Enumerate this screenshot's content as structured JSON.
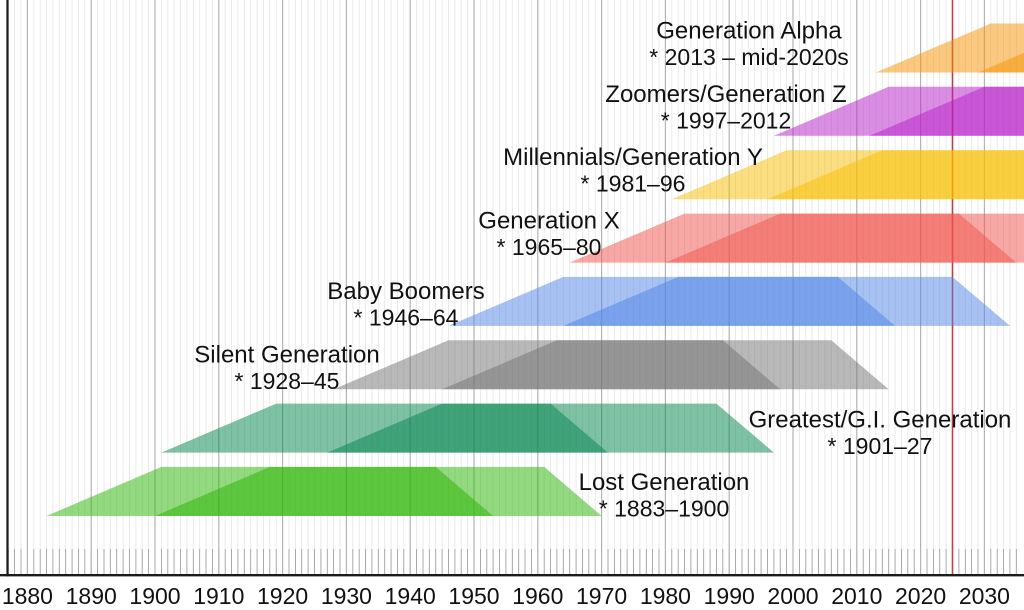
{
  "chart_data": {
    "type": "area",
    "subtype": "generational-timeline-trapezoids",
    "title": "",
    "background": "#FFFFFF",
    "x_axis": {
      "tick_years": [
        1880,
        1890,
        1900,
        1910,
        1920,
        1930,
        1940,
        1950,
        1960,
        1970,
        1980,
        1990,
        2000,
        2010,
        2020,
        2030
      ],
      "minor_gridline_every_years": 1,
      "minor_year_start": 1877,
      "minor_year_end": 2035,
      "visible_year_range": [
        1876,
        2036
      ]
    },
    "current_year_marker": {
      "year": 2025,
      "color": "#CC3B3B"
    },
    "band_shape_years": {
      "rise": 18,
      "plateau_end": 61,
      "total": 70
    },
    "fill_opacity": 0.5,
    "generations": [
      {
        "name": "Generation Alpha",
        "years_label": "* 2013 – mid-2020s",
        "start_year": 2013,
        "end_year": 2029,
        "color": "#F59100",
        "label_center_x": 749,
        "label_dy": -7
      },
      {
        "name": "Zoomers/Generation Z",
        "years_label": "* 1997–2012",
        "start_year": 1997,
        "end_year": 2012,
        "color": "#B51DC8",
        "label_center_x": 726,
        "label_dy": -7
      },
      {
        "name": "Millennials/Generation Y",
        "years_label": "* 1981–96",
        "start_year": 1981,
        "end_year": 1996,
        "color": "#F7BD00",
        "label_center_x": 633,
        "label_dy": -7
      },
      {
        "name": "Generation X",
        "years_label": "* 1965–80",
        "start_year": 1965,
        "end_year": 1980,
        "color": "#EF5149",
        "label_center_x": 549,
        "label_dy": -7
      },
      {
        "name": "Baby Boomers",
        "years_label": "* 1946–64",
        "start_year": 1946,
        "end_year": 1964,
        "color": "#4D83E5",
        "label_center_x": 406,
        "label_dy": 0
      },
      {
        "name": "Silent Generation",
        "years_label": "* 1928–45",
        "start_year": 1928,
        "end_year": 1945,
        "color": "#717171",
        "label_center_x": 287,
        "label_dy": 0
      },
      {
        "name": "Greatest/G.I. Generation",
        "years_label": "* 1901–27",
        "start_year": 1901,
        "end_year": 1927,
        "color": "#00834B",
        "label_center_x": 880,
        "label_dy": 2
      },
      {
        "name": "Lost Generation",
        "years_label": "* 1883–1900",
        "start_year": 1883,
        "end_year": 1900,
        "color": "#27B300",
        "label_center_x": 664,
        "label_dy": 1
      }
    ],
    "grid_colors": {
      "minor": "#E5E5E5",
      "major": "#B4B4B4",
      "tick_comb": "#999999",
      "axis": "#1B1B1B"
    },
    "text_color": "#111111"
  }
}
